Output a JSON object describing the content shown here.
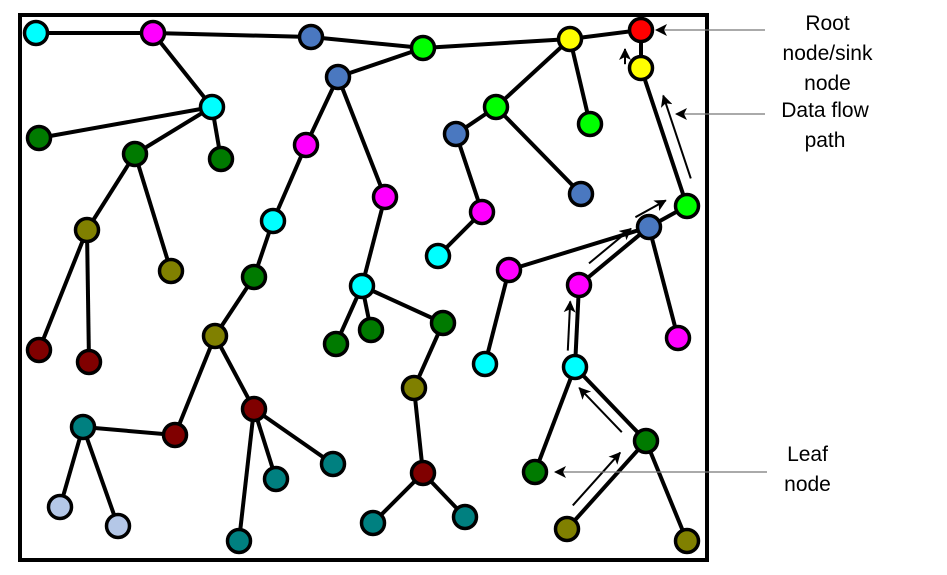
{
  "colors": {
    "cyan": "#00FFFF",
    "magenta": "#FF00FF",
    "blue": "#4A78C0",
    "green": "#00FF00",
    "yellow": "#FFFF00",
    "red": "#FF0000",
    "darkgreen": "#007A00",
    "olive": "#808000",
    "darkred": "#800000",
    "teal": "#008080",
    "lightblue": "#B4C7E7"
  },
  "root_node": 6,
  "nodes": [
    {
      "id": 1,
      "color": "cyan"
    },
    {
      "id": 2,
      "color": "magenta"
    },
    {
      "id": 3,
      "color": "blue"
    },
    {
      "id": 4,
      "color": "green"
    },
    {
      "id": 5,
      "color": "yellow"
    },
    {
      "id": 6,
      "color": "red"
    },
    {
      "id": 7,
      "color": "yellow"
    },
    {
      "id": 8,
      "color": "cyan"
    },
    {
      "id": 9,
      "color": "darkgreen"
    },
    {
      "id": 10,
      "color": "darkgreen"
    },
    {
      "id": 11,
      "color": "darkgreen"
    },
    {
      "id": 12,
      "color": "blue"
    },
    {
      "id": 13,
      "color": "green"
    },
    {
      "id": 14,
      "color": "green"
    },
    {
      "id": 15,
      "color": "blue"
    },
    {
      "id": 16,
      "color": "blue"
    },
    {
      "id": 17,
      "color": "magenta"
    },
    {
      "id": 18,
      "color": "magenta"
    },
    {
      "id": 19,
      "color": "magenta"
    },
    {
      "id": 20,
      "color": "cyan"
    },
    {
      "id": 21,
      "color": "green"
    },
    {
      "id": 22,
      "color": "blue"
    },
    {
      "id": 23,
      "color": "olive"
    },
    {
      "id": 24,
      "color": "olive"
    },
    {
      "id": 25,
      "color": "cyan"
    },
    {
      "id": 26,
      "color": "darkgreen"
    },
    {
      "id": 27,
      "color": "cyan"
    },
    {
      "id": 28,
      "color": "magenta"
    },
    {
      "id": 29,
      "color": "magenta"
    },
    {
      "id": 30,
      "color": "magenta"
    },
    {
      "id": 31,
      "color": "darkred"
    },
    {
      "id": 32,
      "color": "darkred"
    },
    {
      "id": 33,
      "color": "olive"
    },
    {
      "id": 34,
      "color": "darkgreen"
    },
    {
      "id": 35,
      "color": "darkgreen"
    },
    {
      "id": 36,
      "color": "darkgreen"
    },
    {
      "id": 37,
      "color": "cyan"
    },
    {
      "id": 38,
      "color": "cyan"
    },
    {
      "id": 39,
      "color": "olive"
    },
    {
      "id": 40,
      "color": "teal"
    },
    {
      "id": 41,
      "color": "darkred"
    },
    {
      "id": 42,
      "color": "darkred"
    },
    {
      "id": 43,
      "color": "teal"
    },
    {
      "id": 44,
      "color": "teal"
    },
    {
      "id": 45,
      "color": "darkred"
    },
    {
      "id": 46,
      "color": "darkgreen"
    },
    {
      "id": 47,
      "color": "darkgreen"
    },
    {
      "id": 48,
      "color": "lightblue"
    },
    {
      "id": 49,
      "color": "lightblue"
    },
    {
      "id": 50,
      "color": "teal"
    },
    {
      "id": 51,
      "color": "teal"
    },
    {
      "id": 52,
      "color": "teal"
    },
    {
      "id": 53,
      "color": "olive"
    },
    {
      "id": 54,
      "color": "olive"
    }
  ],
  "edges": [
    [
      1,
      2
    ],
    [
      2,
      3
    ],
    [
      3,
      4
    ],
    [
      4,
      12
    ],
    [
      4,
      5
    ],
    [
      5,
      6
    ],
    [
      6,
      7
    ],
    [
      7,
      21
    ],
    [
      21,
      22
    ],
    [
      22,
      28
    ],
    [
      22,
      29
    ],
    [
      22,
      30
    ],
    [
      29,
      38
    ],
    [
      38,
      47
    ],
    [
      38,
      46
    ],
    [
      46,
      53
    ],
    [
      46,
      54
    ],
    [
      28,
      37
    ],
    [
      5,
      13
    ],
    [
      5,
      14
    ],
    [
      13,
      15
    ],
    [
      13,
      16
    ],
    [
      15,
      19
    ],
    [
      19,
      20
    ],
    [
      12,
      17
    ],
    [
      12,
      18
    ],
    [
      18,
      27
    ],
    [
      27,
      34
    ],
    [
      27,
      35
    ],
    [
      27,
      36
    ],
    [
      36,
      39
    ],
    [
      39,
      45
    ],
    [
      45,
      51
    ],
    [
      45,
      52
    ],
    [
      17,
      25
    ],
    [
      25,
      26
    ],
    [
      26,
      33
    ],
    [
      33,
      41
    ],
    [
      33,
      42
    ],
    [
      41,
      40
    ],
    [
      40,
      48
    ],
    [
      40,
      49
    ],
    [
      42,
      50
    ],
    [
      42,
      44
    ],
    [
      42,
      43
    ],
    [
      2,
      8
    ],
    [
      8,
      9
    ],
    [
      8,
      10
    ],
    [
      8,
      11
    ],
    [
      10,
      23
    ],
    [
      10,
      24
    ],
    [
      23,
      31
    ],
    [
      23,
      32
    ]
  ],
  "data_flow_path": [
    53,
    46,
    38,
    29,
    22,
    21,
    7,
    6
  ],
  "annotations": {
    "root": {
      "line1": "Root node/sink",
      "line2": "node"
    },
    "flow": {
      "line1": "Data flow",
      "line2": "path"
    },
    "leaf": {
      "line1": "Leaf",
      "line2": "node"
    }
  }
}
